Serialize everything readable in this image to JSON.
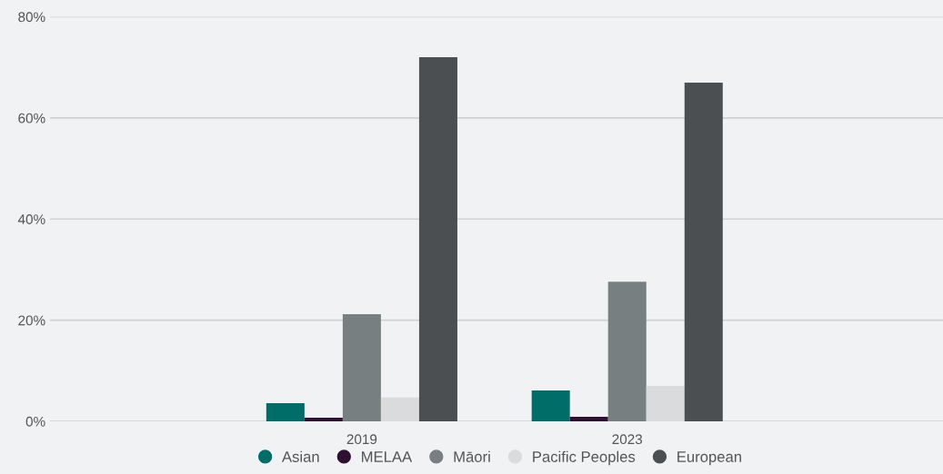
{
  "chart_data": {
    "type": "bar",
    "categories": [
      "2019",
      "2023"
    ],
    "series": [
      {
        "name": "Asian",
        "color": "#006d69",
        "values": [
          3.6,
          6.1
        ]
      },
      {
        "name": "MELAA",
        "color": "#2e1030",
        "values": [
          0.7,
          0.9
        ]
      },
      {
        "name": "Māori",
        "color": "#787f81",
        "values": [
          21.2,
          27.6
        ]
      },
      {
        "name": "Pacific Peoples",
        "color": "#dadbdd",
        "values": [
          4.7,
          7.0
        ]
      },
      {
        "name": "European",
        "color": "#4b4f51",
        "values": [
          72.0,
          67.0
        ]
      }
    ],
    "ylim": [
      0,
      80
    ],
    "yticks": [
      {
        "value": 0,
        "label": "0%"
      },
      {
        "value": 20,
        "label": "20%"
      },
      {
        "value": 40,
        "label": "40%"
      },
      {
        "value": 60,
        "label": "60%"
      },
      {
        "value": 80,
        "label": "80%"
      }
    ],
    "grid": "y",
    "legend": "bottom",
    "marker": "circle"
  }
}
